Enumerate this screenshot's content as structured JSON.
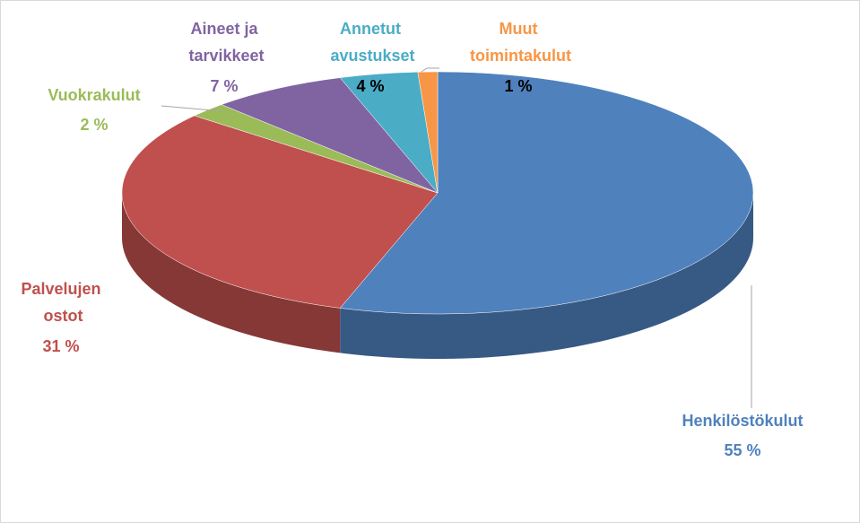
{
  "chart_data": {
    "type": "pie",
    "categories": [
      "Henkilöstökulut",
      "Palvelujen ostot",
      "Vuokrakulut",
      "Aineet ja tarvikkeet",
      "Annetut avustukset",
      "Muut toimintakulut"
    ],
    "values": [
      55,
      31,
      2,
      7,
      4,
      1
    ],
    "value_labels": [
      "55 %",
      "31 %",
      "2 %",
      "7 %",
      "4 %",
      "1 %"
    ],
    "colors": [
      "#4f81bd",
      "#c0504d",
      "#9bbb59",
      "#8064a2",
      "#4bacc6",
      "#f79646"
    ]
  }
}
